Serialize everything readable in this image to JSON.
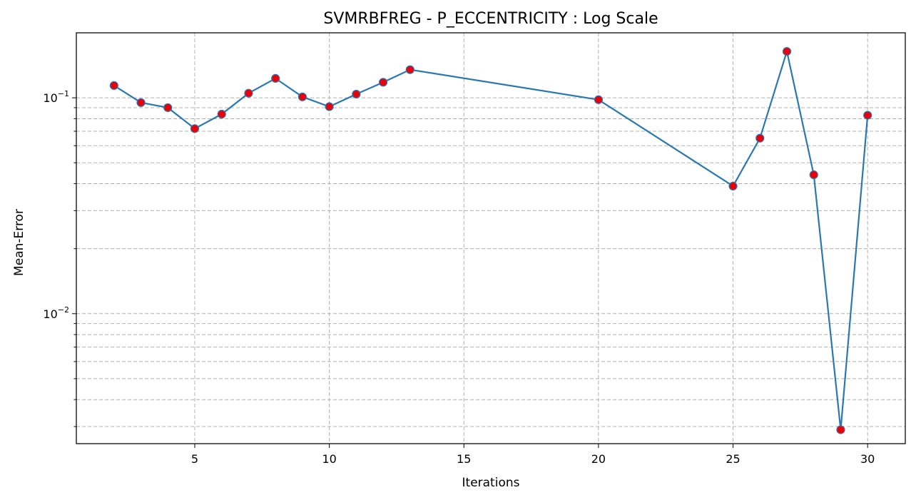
{
  "chart_data": {
    "type": "line",
    "title": "SVMRBFREG - P_ECCENTRICITY : Log Scale",
    "xlabel": "Iterations",
    "ylabel": "Mean-Error",
    "yscale": "log",
    "xlim": [
      0.6,
      31.4
    ],
    "ylim": [
      0.0025,
      0.2
    ],
    "xticks": [
      5,
      10,
      15,
      20,
      25,
      30
    ],
    "xtick_labels": [
      "5",
      "10",
      "15",
      "20",
      "25",
      "30"
    ],
    "yticks_major": [
      0.01,
      0.1
    ],
    "ytick_labels": [
      {
        "base": "10",
        "exp": "−2"
      },
      {
        "base": "10",
        "exp": "−1"
      }
    ],
    "yticks_minor": [
      0.003,
      0.004,
      0.005,
      0.006,
      0.007,
      0.008,
      0.009,
      0.02,
      0.03,
      0.04,
      0.05,
      0.06,
      0.07,
      0.08,
      0.09
    ],
    "grid": true,
    "line_color": "#2b78b0",
    "marker_color": "#e8000b",
    "marker_edge_color": "#2b78b0",
    "series": [
      {
        "x": [
          2,
          3,
          4,
          5,
          6,
          7,
          8,
          9,
          10,
          11,
          12,
          13,
          20,
          25,
          26,
          27,
          28,
          29,
          30
        ],
        "values": [
          0.114,
          0.095,
          0.09,
          0.072,
          0.084,
          0.105,
          0.123,
          0.101,
          0.091,
          0.104,
          0.118,
          0.135,
          0.098,
          0.039,
          0.065,
          0.164,
          0.044,
          0.0029,
          0.083
        ]
      }
    ]
  }
}
